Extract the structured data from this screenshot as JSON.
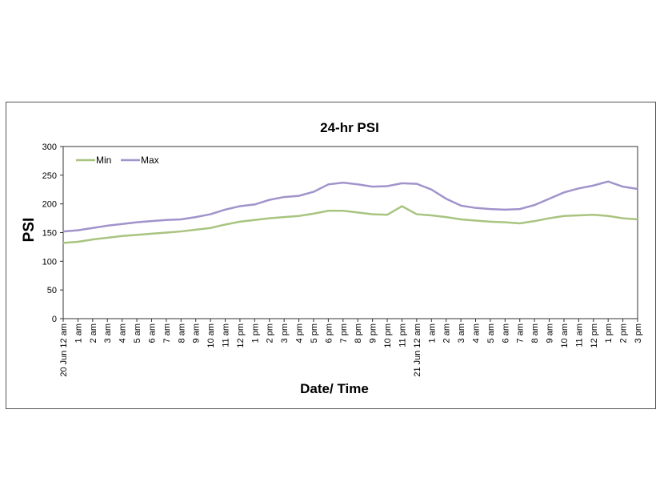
{
  "chart_data": {
    "type": "line",
    "title": "24-hr PSI",
    "x_label": "Date/ Time",
    "y_label": "PSI",
    "categories": [
      "20 Jun 12 am",
      "1 am",
      "2 am",
      "3 am",
      "4 am",
      "5 am",
      "6 am",
      "7 am",
      "8 am",
      "9 am",
      "10 am",
      "11 am",
      "12 pm",
      "1 pm",
      "2 pm",
      "3 pm",
      "4 pm",
      "5 pm",
      "6 pm",
      "7 pm",
      "8 pm",
      "9 pm",
      "10 pm",
      "11 pm",
      "21 Jun 12 am",
      "1 am",
      "2 am",
      "3 am",
      "4 am",
      "5 am",
      "6 am",
      "7 am",
      "8 am",
      "9 am",
      "10 am",
      "11 am",
      "12 pm",
      "1 pm",
      "2 pm",
      "3 pm"
    ],
    "series": [
      {
        "name": "Min",
        "color": "#a8c47f",
        "values": [
          132,
          134,
          138,
          141,
          144,
          146,
          148,
          150,
          152,
          155,
          158,
          164,
          169,
          172,
          175,
          177,
          179,
          183,
          188,
          188,
          185,
          182,
          181,
          196,
          182,
          180,
          177,
          173,
          171,
          169,
          168,
          166,
          170,
          175,
          179,
          180,
          181,
          179,
          175,
          173
        ]
      },
      {
        "name": "Max",
        "color": "#a193cb",
        "values": [
          152,
          154,
          158,
          162,
          165,
          168,
          170,
          172,
          173,
          177,
          182,
          190,
          196,
          199,
          207,
          212,
          214,
          221,
          234,
          237,
          234,
          230,
          231,
          236,
          235,
          225,
          209,
          197,
          193,
          191,
          190,
          191,
          198,
          209,
          220,
          227,
          232,
          239,
          230,
          226
        ]
      }
    ],
    "ylim": [
      0,
      300
    ],
    "yticks": [
      0,
      50,
      100,
      150,
      200,
      250,
      300
    ],
    "grid": false,
    "legend": "top-left"
  }
}
